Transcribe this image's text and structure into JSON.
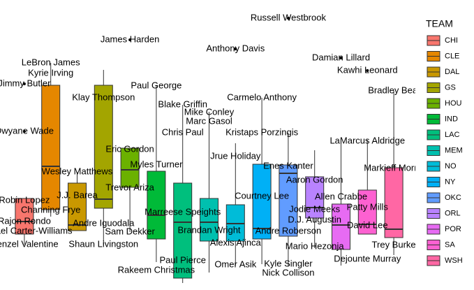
{
  "chart_data": {
    "type": "box",
    "legend_title": "TEAM",
    "legend": "right",
    "ylim": [
      0,
      410
    ],
    "series": [
      {
        "name": "CHI",
        "color": "#F8766D",
        "low": 60,
        "q1": 75,
        "median": 93,
        "q3": 126,
        "high": 126
      },
      {
        "name": "CLE",
        "color": "#E58700",
        "low": 100,
        "q1": 110,
        "median": 172,
        "q3": 288,
        "high": 320
      },
      {
        "name": "DAL",
        "color": "#C99800",
        "low": 80,
        "q1": 80,
        "median": 88,
        "q3": 148,
        "high": 164
      },
      {
        "name": "GS",
        "color": "#A3A500",
        "low": 60,
        "q1": 112,
        "median": 125,
        "q3": 288,
        "high": 310
      },
      {
        "name": "HOU",
        "color": "#6BB100",
        "low": 78,
        "q1": 142,
        "median": 167,
        "q3": 198,
        "high": 198
      },
      {
        "name": "IND",
        "color": "#00BA38",
        "low": 35,
        "q1": 68,
        "median": 102,
        "q3": 165,
        "high": 287
      },
      {
        "name": "LAC",
        "color": "#00BF7D",
        "low": 5,
        "q1": 12,
        "median": 92,
        "q3": 148,
        "high": 260
      },
      {
        "name": "MEM",
        "color": "#00C0AF",
        "low": 20,
        "q1": 65,
        "median": 92,
        "q3": 126,
        "high": 250
      },
      {
        "name": "NO",
        "color": "#00BCD8",
        "low": 30,
        "q1": 65,
        "median": 90,
        "q3": 117,
        "high": 205
      },
      {
        "name": "NY",
        "color": "#00B0F6",
        "low": 32,
        "q1": 68,
        "median": 83,
        "q3": 175,
        "high": 270
      },
      {
        "name": "OKC",
        "color": "#619CFF",
        "low": 30,
        "q1": 72,
        "median": 162,
        "q3": 174,
        "high": 220
      },
      {
        "name": "ORL",
        "color": "#B983FF",
        "low": 55,
        "q1": 98,
        "median": 113,
        "q3": 157,
        "high": 195
      },
      {
        "name": "POR",
        "color": "#E76BF3",
        "low": 30,
        "q1": 53,
        "median": 88,
        "q3": 118,
        "high": 210
      },
      {
        "name": "SA",
        "color": "#FD61D1",
        "low": 75,
        "q1": 75,
        "median": 89,
        "q3": 138,
        "high": 210
      },
      {
        "name": "WSH",
        "color": "#FF67A4",
        "low": 45,
        "q1": 70,
        "median": 82,
        "q3": 170,
        "high": 280
      }
    ],
    "outliers": [
      {
        "label": "Russell Westbrook",
        "team": "OKC",
        "value": 384
      },
      {
        "label": "James Harden",
        "team": "HOU",
        "value": 353
      },
      {
        "label": "Anthony Davis",
        "team": "NO",
        "value": 340
      },
      {
        "label": "Damian Lillard",
        "team": "POR",
        "value": 327
      },
      {
        "label": "Kawhi Leonard",
        "team": "SA",
        "value": 309
      },
      {
        "label": "Jimmy Butler",
        "team": "CHI",
        "value": 290
      },
      {
        "label": "Dwyane Wade",
        "team": "CHI",
        "value": 222
      }
    ],
    "points": [
      {
        "label": "LeBron James",
        "team": "CLE",
        "value": 320
      },
      {
        "label": "Kyrie Irving",
        "team": "CLE",
        "value": 305
      },
      {
        "label": "Paul George",
        "team": "IND",
        "value": 287
      },
      {
        "label": "Bradley Beal",
        "team": "WSH",
        "value": 280
      },
      {
        "label": "Klay Thompson",
        "team": "GS",
        "value": 270
      },
      {
        "label": "Carmelo Anthony",
        "team": "NY",
        "value": 270
      },
      {
        "label": "Blake Griffin",
        "team": "LAC",
        "value": 260
      },
      {
        "label": "Mike Conley",
        "team": "MEM",
        "value": 249
      },
      {
        "label": "Marc Gasol",
        "team": "MEM",
        "value": 236
      },
      {
        "label": "Chris Paul",
        "team": "LAC",
        "value": 220
      },
      {
        "label": "Kristaps Porzingis",
        "team": "NY",
        "value": 220
      },
      {
        "label": "LaMarcus Aldridge",
        "team": "SA",
        "value": 208
      },
      {
        "label": "Eric Gordon",
        "team": "HOU",
        "value": 196
      },
      {
        "label": "Jrue Holiday",
        "team": "NO",
        "value": 186
      },
      {
        "label": "Myles Turner",
        "team": "IND",
        "value": 174
      },
      {
        "label": "Enes Kanter",
        "team": "OKC",
        "value": 172
      },
      {
        "label": "Markieff Morris",
        "team": "WSH",
        "value": 169
      },
      {
        "label": "Wesley Matthews",
        "team": "DAL",
        "value": 164
      },
      {
        "label": "Aaron Gordon",
        "team": "ORL",
        "value": 152
      },
      {
        "label": "Trevor Ariza",
        "team": "HOU",
        "value": 141
      },
      {
        "label": "J.J. Barea",
        "team": "DAL",
        "value": 130
      },
      {
        "label": "Courtney Lee",
        "team": "NY",
        "value": 129
      },
      {
        "label": "Allen Crabbe",
        "team": "POR",
        "value": 128
      },
      {
        "label": "Robin Lopez",
        "team": "CHI",
        "value": 123
      },
      {
        "label": "Channing Frye",
        "team": "CLE",
        "value": 109
      },
      {
        "label": "Patty Mills",
        "team": "SA",
        "value": 113
      },
      {
        "label": "Jodie Meeks",
        "team": "ORL",
        "value": 110
      },
      {
        "label": "Marreese Speights",
        "team": "LAC",
        "value": 106
      },
      {
        "label": "D.J. Augustin",
        "team": "ORL",
        "value": 95
      },
      {
        "label": "Rajon Rondo",
        "team": "CHI",
        "value": 93
      },
      {
        "label": "Andre Iguodala",
        "team": "GS",
        "value": 90
      },
      {
        "label": "David Lee",
        "team": "SA",
        "value": 87
      },
      {
        "label": "Brandan Wright",
        "team": "MEM",
        "value": 80
      },
      {
        "label": "Andre Roberson",
        "team": "OKC",
        "value": 79
      },
      {
        "label": "Michael Carter-Williams",
        "team": "CHI",
        "value": 79
      },
      {
        "label": "Sam Dekker",
        "team": "HOU",
        "value": 78
      },
      {
        "label": "Alexis Ajinca",
        "team": "NO",
        "value": 62
      },
      {
        "label": "Denzel Valentine",
        "team": "CHI",
        "value": 60
      },
      {
        "label": "Shaun Livingston",
        "team": "GS",
        "value": 60
      },
      {
        "label": "Trey Burke",
        "team": "WSH",
        "value": 59
      },
      {
        "label": "Mario Hezonja",
        "team": "ORL",
        "value": 57
      },
      {
        "label": "Dejounte Murray",
        "team": "SA",
        "value": 39
      },
      {
        "label": "Paul Pierce",
        "team": "LAC",
        "value": 37
      },
      {
        "label": "Omer Asik",
        "team": "NO",
        "value": 31
      },
      {
        "label": "Kyle Singler",
        "team": "OKC",
        "value": 32
      },
      {
        "label": "Rakeem Christmas",
        "team": "IND",
        "value": 23
      },
      {
        "label": "Nick Collison",
        "team": "OKC",
        "value": 19
      }
    ]
  }
}
